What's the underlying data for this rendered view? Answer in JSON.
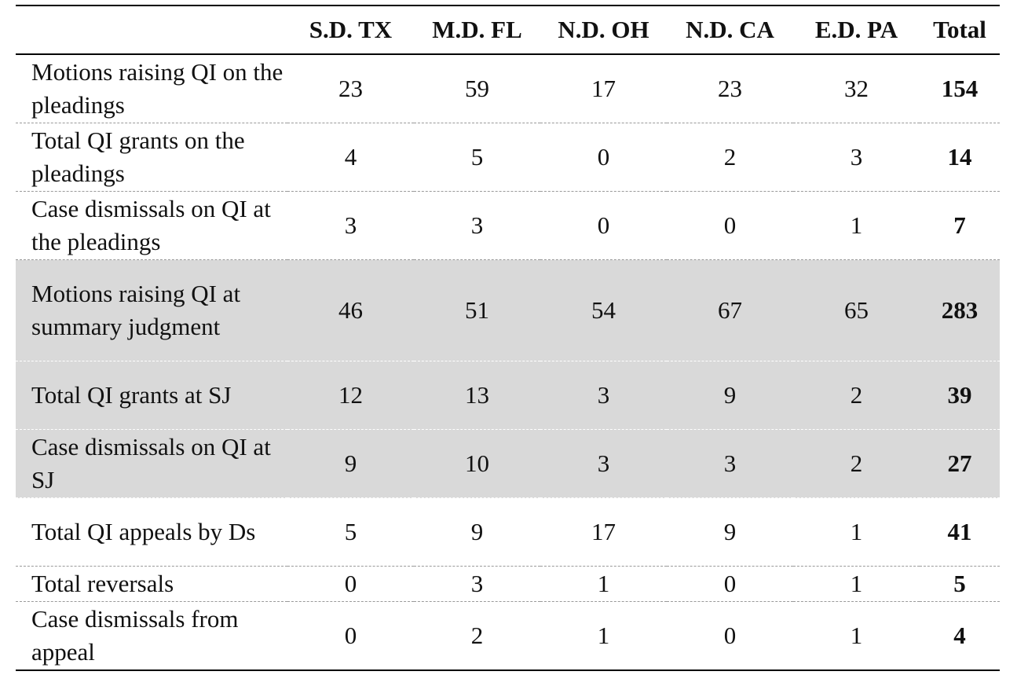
{
  "chart_data": {
    "type": "table",
    "columns": [
      "",
      "S.D. TX",
      "M.D. FL",
      "N.D. OH",
      "N.D. CA",
      "E.D. PA",
      "Total"
    ],
    "rows": [
      {
        "label": "Motions raising QI on the pleadings",
        "values": [
          "23",
          "59",
          "17",
          "23",
          "32"
        ],
        "total": "154",
        "shaded": false
      },
      {
        "label": "Total QI grants on the pleadings",
        "values": [
          "4",
          "5",
          "0",
          "2",
          "3"
        ],
        "total": "14",
        "shaded": false
      },
      {
        "label": "Case dismissals on QI at the pleadings",
        "values": [
          "3",
          "3",
          "0",
          "0",
          "1"
        ],
        "total": "7",
        "shaded": false
      },
      {
        "label": "Motions raising QI at summary judgment",
        "values": [
          "46",
          "51",
          "54",
          "67",
          "65"
        ],
        "total": "283",
        "shaded": true
      },
      {
        "label": "Total QI grants at SJ",
        "values": [
          "12",
          "13",
          "3",
          "9",
          "2"
        ],
        "total": "39",
        "shaded": true
      },
      {
        "label": "Case dismissals on QI at SJ",
        "values": [
          "9",
          "10",
          "3",
          "3",
          "2"
        ],
        "total": "27",
        "shaded": true
      },
      {
        "label": "Total QI appeals by Ds",
        "values": [
          "5",
          "9",
          "17",
          "9",
          "1"
        ],
        "total": "41",
        "shaded": false
      },
      {
        "label": "Total reversals",
        "values": [
          "0",
          "3",
          "1",
          "0",
          "1"
        ],
        "total": "5",
        "shaded": false
      },
      {
        "label": "Case dismissals from appeal",
        "values": [
          "0",
          "2",
          "1",
          "0",
          "1"
        ],
        "total": "4",
        "shaded": false
      }
    ],
    "colors": {
      "shaded_row": "#d9d9d9",
      "rule": "#000000",
      "dashed_rule": "#9a9a9a"
    }
  }
}
